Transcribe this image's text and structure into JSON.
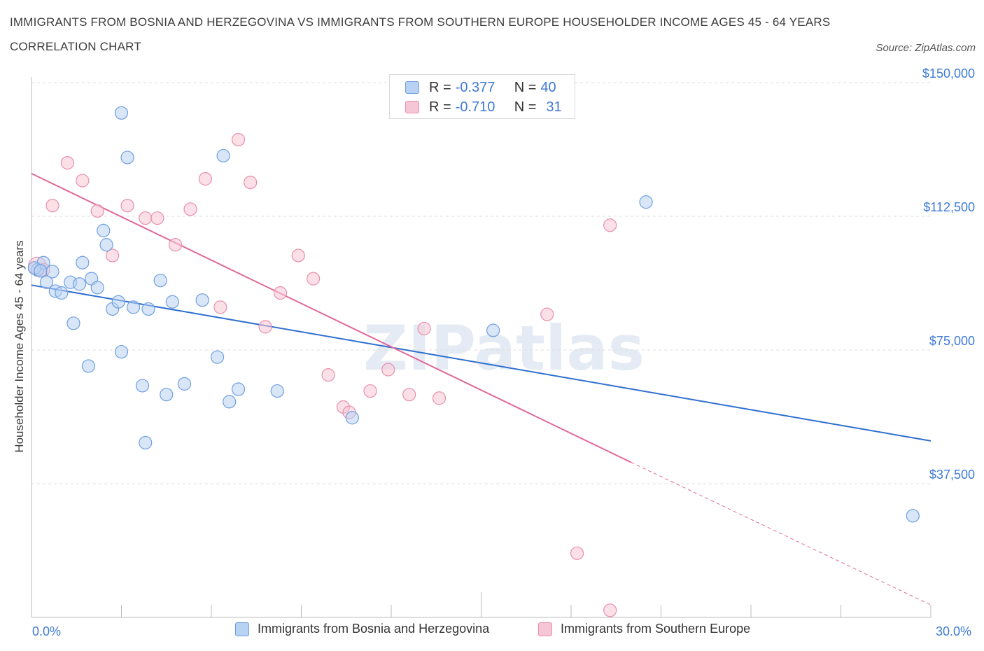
{
  "title": "IMMIGRANTS FROM BOSNIA AND HERZEGOVINA VS IMMIGRANTS FROM SOUTHERN EUROPE HOUSEHOLDER INCOME AGES 45 - 64 YEARS CORRELATION CHART",
  "source": "Source: ZipAtlas.com",
  "watermark": "ZIPatlas",
  "legend_top": [
    {
      "r_label": "R = ",
      "r_value": "-0.377",
      "n_label": "N = ",
      "n_value": "40"
    },
    {
      "r_label": "R = ",
      "r_value": "-0.710",
      "n_label": "N = ",
      "n_value": "31"
    }
  ],
  "colors": {
    "blue_fill": "#b8d2f3",
    "blue_stroke": "#6f9fe0",
    "blue_line": "#2f6fcf",
    "pink_fill": "#f7c6d6",
    "pink_stroke": "#e88fae",
    "pink_line": "#e0689a",
    "tick_label": "#3f7bd6",
    "grid": "#dcdcdc"
  },
  "chart_data": {
    "type": "scatter",
    "title": "IMMIGRANTS FROM BOSNIA AND HERZEGOVINA VS IMMIGRANTS FROM SOUTHERN EUROPE HOUSEHOLDER INCOME AGES 45 - 64 YEARS CORRELATION CHART",
    "xlabel": "",
    "ylabel": "Householder Income Ages 45 - 64 years",
    "xlim": [
      0,
      30
    ],
    "ylim": [
      0,
      150000
    ],
    "x_tick_labels": [
      "0.0%",
      "30.0%"
    ],
    "y_ticks": [
      37500,
      75000,
      112500,
      150000
    ],
    "y_tick_labels": [
      "$37,500",
      "$75,000",
      "$112,500",
      "$150,000"
    ],
    "grid": true,
    "legend_position": "bottom",
    "series": [
      {
        "name": "Immigrants from Bosnia and Herzegovina",
        "color": "blue",
        "R": -0.377,
        "N": 40,
        "trend": {
          "x0": 0,
          "y0": 93200,
          "x1": 30,
          "y1": 49500
        },
        "points": [
          [
            0.2,
            97500
          ],
          [
            0.4,
            99500
          ],
          [
            0.7,
            97000
          ],
          [
            0.5,
            94000
          ],
          [
            0.8,
            91500
          ],
          [
            1.0,
            91000
          ],
          [
            1.3,
            94000
          ],
          [
            1.6,
            93500
          ],
          [
            1.4,
            82500
          ],
          [
            1.7,
            99500
          ],
          [
            2.0,
            95000
          ],
          [
            2.2,
            92500
          ],
          [
            2.4,
            108500
          ],
          [
            2.5,
            104500
          ],
          [
            3.0,
            141500
          ],
          [
            3.2,
            129000
          ],
          [
            2.7,
            86500
          ],
          [
            2.9,
            88500
          ],
          [
            3.4,
            87000
          ],
          [
            3.9,
            86500
          ],
          [
            4.3,
            94500
          ],
          [
            4.7,
            88500
          ],
          [
            5.7,
            89000
          ],
          [
            6.4,
            129500
          ],
          [
            6.2,
            73000
          ],
          [
            1.9,
            70500
          ],
          [
            3.0,
            74500
          ],
          [
            3.7,
            65000
          ],
          [
            4.5,
            62500
          ],
          [
            5.1,
            65500
          ],
          [
            6.6,
            60500
          ],
          [
            6.9,
            64000
          ],
          [
            8.2,
            63500
          ],
          [
            10.7,
            56000
          ],
          [
            15.4,
            80500
          ],
          [
            20.5,
            116500
          ],
          [
            3.8,
            49000
          ],
          [
            29.4,
            28500
          ],
          [
            0.1,
            98000
          ],
          [
            0.3,
            97200
          ]
        ]
      },
      {
        "name": "Immigrants from Southern Europe",
        "color": "pink",
        "R": -0.71,
        "N": 31,
        "trend": {
          "x0": 0,
          "y0": 124500,
          "x1": 20,
          "y1": 43500,
          "dash_x1": 30,
          "dash_y1": 3500
        },
        "points": [
          [
            0.2,
            98500
          ],
          [
            0.4,
            97500
          ],
          [
            0.7,
            115500
          ],
          [
            1.2,
            127500
          ],
          [
            1.7,
            122500
          ],
          [
            2.2,
            114000
          ],
          [
            2.7,
            101500
          ],
          [
            3.2,
            115500
          ],
          [
            3.8,
            112000
          ],
          [
            4.2,
            112000
          ],
          [
            4.8,
            104500
          ],
          [
            5.3,
            114500
          ],
          [
            5.8,
            123000
          ],
          [
            6.3,
            87000
          ],
          [
            6.9,
            134000
          ],
          [
            7.3,
            122000
          ],
          [
            7.8,
            81500
          ],
          [
            8.3,
            91000
          ],
          [
            8.9,
            101500
          ],
          [
            9.4,
            95000
          ],
          [
            9.9,
            68000
          ],
          [
            10.4,
            59000
          ],
          [
            10.6,
            57500
          ],
          [
            11.3,
            63500
          ],
          [
            11.9,
            69500
          ],
          [
            12.6,
            62500
          ],
          [
            13.1,
            81000
          ],
          [
            13.6,
            61500
          ],
          [
            17.2,
            85000
          ],
          [
            18.2,
            18000
          ],
          [
            19.3,
            110000
          ]
        ]
      }
    ],
    "extra_points": [
      {
        "series": 1,
        "x": 19.3,
        "y": 2000
      }
    ]
  },
  "legend_bottom": [
    {
      "label": "Immigrants from Bosnia and Herzegovina",
      "color": "blue"
    },
    {
      "label": "Immigrants from Southern Europe",
      "color": "pink"
    }
  ]
}
